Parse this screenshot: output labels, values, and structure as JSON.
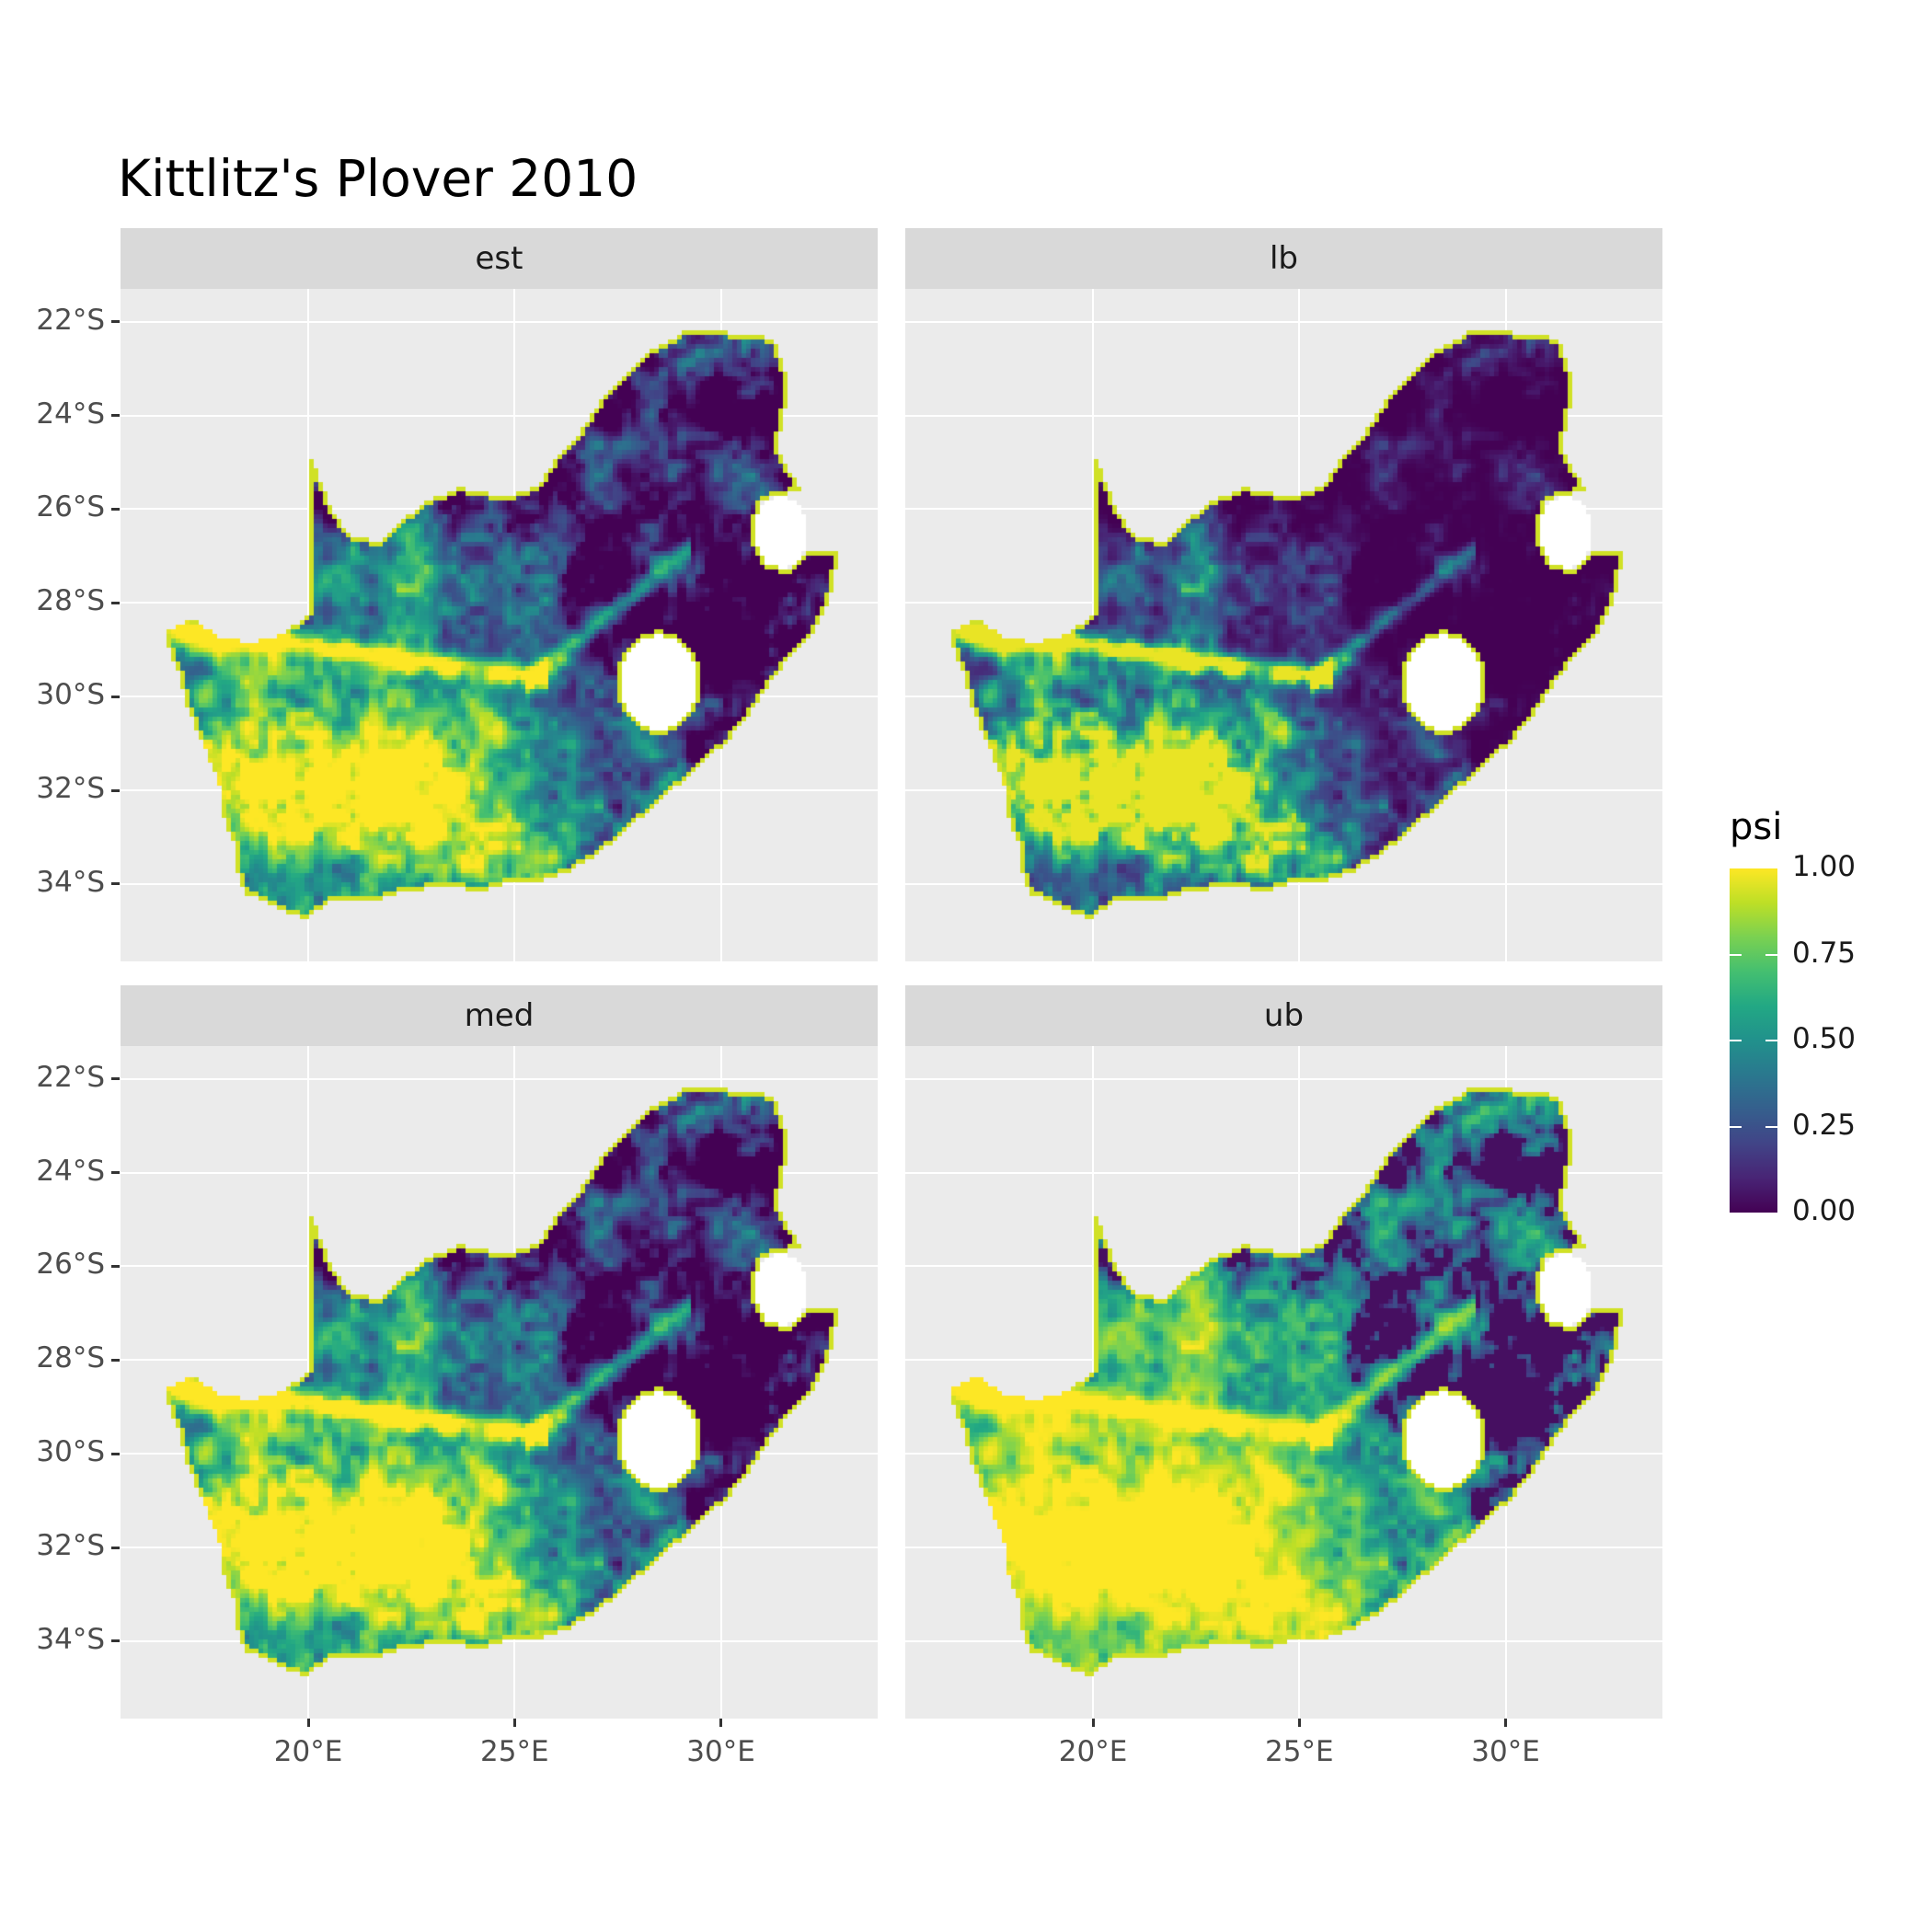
{
  "title": "Kittlitz's Plover 2010",
  "panel_colors": {
    "strip_bg": "#d9d9d9",
    "panel_bg": "#ebebeb",
    "gridline": "#ffffff",
    "axis_text": "#4d4d4d",
    "na_fill": "#ffffff"
  },
  "chart_data": {
    "type": "heatmap",
    "title": "Kittlitz's Plover 2010",
    "facets": [
      "est",
      "lb",
      "med",
      "ub"
    ],
    "variable": "psi",
    "region": "South Africa (Lesotho and Eswatini shown as white holes)",
    "colormap": "viridis",
    "colormap_stops": [
      [
        0,
        "#440154"
      ],
      [
        0.1,
        "#482475"
      ],
      [
        0.2,
        "#414487"
      ],
      [
        0.3,
        "#355f8d"
      ],
      [
        0.4,
        "#2a788e"
      ],
      [
        0.5,
        "#21918c"
      ],
      [
        0.6,
        "#22a884"
      ],
      [
        0.7,
        "#44bf70"
      ],
      [
        0.8,
        "#7ad151"
      ],
      [
        0.9,
        "#bddf26"
      ],
      [
        1,
        "#fde725"
      ]
    ],
    "x_axis": {
      "label": "",
      "tick_labels": [
        "20°E",
        "25°E",
        "30°E"
      ],
      "tick_values": [
        20,
        25,
        30
      ],
      "lon_range": [
        15.45,
        33.8
      ]
    },
    "y_axis": {
      "label": "",
      "tick_labels": [
        "22°S",
        "24°S",
        "26°S",
        "28°S",
        "30°S",
        "32°S",
        "34°S"
      ],
      "tick_values_south": [
        22,
        24,
        26,
        28,
        30,
        32,
        34
      ],
      "lat_range_south": [
        21.3,
        35.65
      ]
    },
    "legend": {
      "title": "psi",
      "tick_labels": [
        "1.00",
        "0.75",
        "0.50",
        "0.25",
        "0.00"
      ],
      "tick_values": [
        1,
        0.75,
        0.5,
        0.25,
        0
      ]
    },
    "facet_transforms": [
      {
        "name": "est",
        "lift": 0,
        "gain": 1.0,
        "gamma": 1.0
      },
      {
        "name": "lb",
        "lift": 0,
        "gain": 0.97,
        "gamma": 1.75
      },
      {
        "name": "med",
        "lift": 0,
        "gain": 1.06,
        "gamma": 0.93
      },
      {
        "name": "ub",
        "lift": 0.04,
        "gain": 1.05,
        "gamma": 0.55
      }
    ],
    "pattern_summary": "Occupancy probability psi is highest (yellow) in southwest South Africa, along the Orange and Vaal rivers and all coastlines; lowest (dark purple) in the northeast interior. Overall brightness order across facets: lb < est ≈ med < ub.",
    "map_outline": [
      [
        20.0,
        24.77
      ],
      [
        20.35,
        25.5
      ],
      [
        20.65,
        26.15
      ],
      [
        21.1,
        26.6
      ],
      [
        21.8,
        26.7
      ],
      [
        22.2,
        26.3
      ],
      [
        22.9,
        25.8
      ],
      [
        23.7,
        25.55
      ],
      [
        24.8,
        25.75
      ],
      [
        25.6,
        25.5
      ],
      [
        26.0,
        24.9
      ],
      [
        26.5,
        24.5
      ],
      [
        26.95,
        23.85
      ],
      [
        27.6,
        23.2
      ],
      [
        28.35,
        22.6
      ],
      [
        29.15,
        22.2
      ],
      [
        29.9,
        22.2
      ],
      [
        30.6,
        22.3
      ],
      [
        31.3,
        22.35
      ],
      [
        31.6,
        23.2
      ],
      [
        31.55,
        24.0
      ],
      [
        31.35,
        24.7
      ],
      [
        31.95,
        25.6
      ],
      [
        31.0,
        25.8
      ],
      [
        30.8,
        26.3
      ],
      [
        30.9,
        26.8
      ],
      [
        31.15,
        27.2
      ],
      [
        31.7,
        27.3
      ],
      [
        32.12,
        26.9
      ],
      [
        32.9,
        26.85
      ],
      [
        32.65,
        27.9
      ],
      [
        32.35,
        28.5
      ],
      [
        31.9,
        28.95
      ],
      [
        31.35,
        29.5
      ],
      [
        30.7,
        30.35
      ],
      [
        30.15,
        30.95
      ],
      [
        29.4,
        31.55
      ],
      [
        28.6,
        32.15
      ],
      [
        27.85,
        32.75
      ],
      [
        27.1,
        33.3
      ],
      [
        26.3,
        33.75
      ],
      [
        25.6,
        33.95
      ],
      [
        24.9,
        33.95
      ],
      [
        24.2,
        34.15
      ],
      [
        23.3,
        34.05
      ],
      [
        22.4,
        34.15
      ],
      [
        21.4,
        34.4
      ],
      [
        20.5,
        34.4
      ],
      [
        19.95,
        34.75
      ],
      [
        19.3,
        34.55
      ],
      [
        18.8,
        34.3
      ],
      [
        18.45,
        34.2
      ],
      [
        18.3,
        33.9
      ],
      [
        18.25,
        33.2
      ],
      [
        17.95,
        32.6
      ],
      [
        17.85,
        31.9
      ],
      [
        17.55,
        31.2
      ],
      [
        17.1,
        30.3
      ],
      [
        16.85,
        29.5
      ],
      [
        16.5,
        28.65
      ],
      [
        17.2,
        28.35
      ],
      [
        17.9,
        28.75
      ],
      [
        18.6,
        28.85
      ],
      [
        19.3,
        28.7
      ],
      [
        19.98,
        28.3
      ],
      [
        19.98,
        27.0
      ],
      [
        19.98,
        25.8
      ]
    ],
    "lesotho_hole": {
      "cx": 28.5,
      "cy": 29.7,
      "rx": 0.92,
      "ry": 1.0
    },
    "eswatini_notch": {
      "cx": 31.45,
      "cy": 26.5,
      "rx": 0.65,
      "ry": 0.75
    }
  }
}
